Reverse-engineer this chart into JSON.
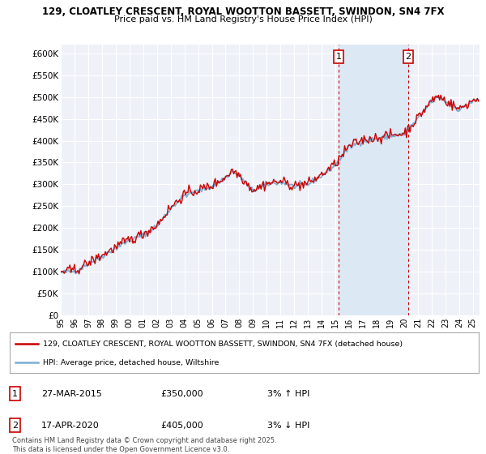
{
  "title1": "129, CLOATLEY CRESCENT, ROYAL WOOTTON BASSETT, SWINDON, SN4 7FX",
  "title2": "Price paid vs. HM Land Registry's House Price Index (HPI)",
  "ylim": [
    0,
    620000
  ],
  "yticks": [
    0,
    50000,
    100000,
    150000,
    200000,
    250000,
    300000,
    350000,
    400000,
    450000,
    500000,
    550000,
    600000
  ],
  "ytick_labels": [
    "£0",
    "£50K",
    "£100K",
    "£150K",
    "£200K",
    "£250K",
    "£300K",
    "£350K",
    "£400K",
    "£450K",
    "£500K",
    "£550K",
    "£600K"
  ],
  "background_color": "#ffffff",
  "plot_bg_color": "#eef2f8",
  "grid_color": "#ffffff",
  "hpi_color": "#7aafd4",
  "price_color": "#cc0000",
  "vline_color": "#cc0000",
  "shade_color": "#dde8f5",
  "marker1_x": 2015.24,
  "marker2_x": 2020.3,
  "legend_label1": "129, CLOATLEY CRESCENT, ROYAL WOOTTON BASSETT, SWINDON, SN4 7FX (detached house)",
  "legend_label2": "HPI: Average price, detached house, Wiltshire",
  "note1_num": "1",
  "note1_date": "27-MAR-2015",
  "note1_price": "£350,000",
  "note1_hpi": "3% ↑ HPI",
  "note2_num": "2",
  "note2_date": "17-APR-2020",
  "note2_price": "£405,000",
  "note2_hpi": "3% ↓ HPI",
  "footer": "Contains HM Land Registry data © Crown copyright and database right 2025.\nThis data is licensed under the Open Government Licence v3.0.",
  "xmin": 1995,
  "xmax": 2025.5
}
